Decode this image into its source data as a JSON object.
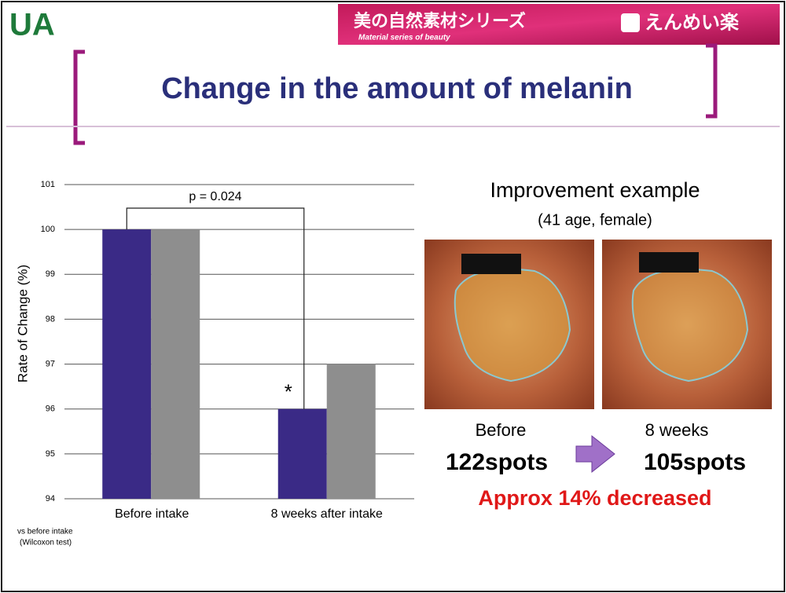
{
  "header": {
    "logo": "UA",
    "banner_jp": "美の自然素材シリーズ",
    "banner_en": "Material series of beauty",
    "brand": "えんめい楽"
  },
  "title": "Change in the amount of melanin",
  "chart_data": {
    "type": "bar",
    "ylabel": "Rate of Change (%)",
    "categories": [
      "Before intake",
      "8 weeks after intake"
    ],
    "series": [
      {
        "color": "#3a2a86",
        "values": [
          100,
          96
        ]
      },
      {
        "color": "#8e8e8e",
        "values": [
          100,
          97
        ]
      }
    ],
    "ylim": [
      94,
      101
    ],
    "yticks": [
      94,
      95,
      96,
      97,
      98,
      99,
      100,
      101
    ],
    "grid": true,
    "annotation": "p = 0.024",
    "significance": "*",
    "footnote": [
      "vs before intake",
      "(Wilcoxon test)"
    ]
  },
  "example": {
    "title": "Improvement example",
    "subtitle": "(41 age, female)",
    "before_label": "Before",
    "before_count": "122spots",
    "after_label": "8 weeks",
    "after_count": "105spots",
    "result": "Approx 14% decreased"
  }
}
